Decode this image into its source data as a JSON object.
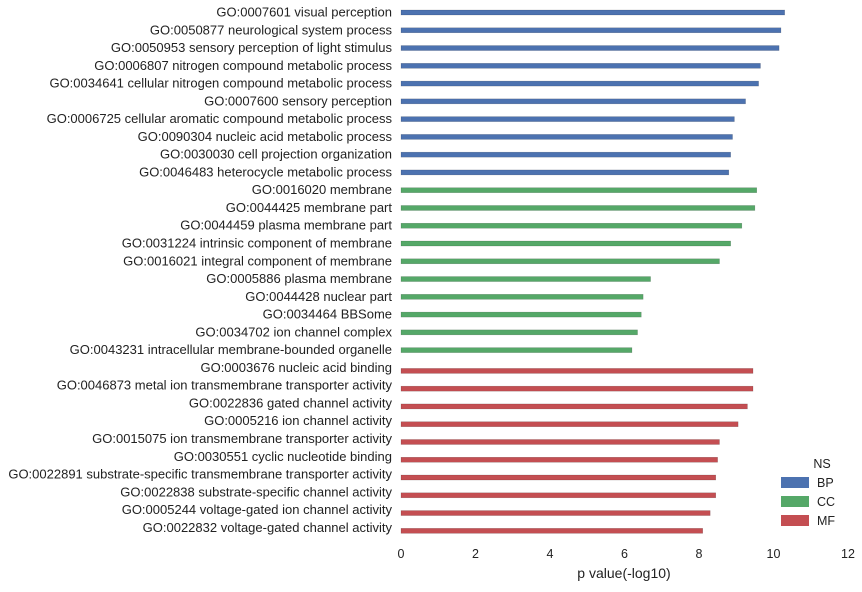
{
  "chart_data": {
    "type": "bar",
    "orientation": "horizontal",
    "title": "",
    "xlabel": "p value(-log10)",
    "ylabel": "",
    "xlim": [
      0,
      12
    ],
    "xticks": [
      "0",
      "2",
      "4",
      "6",
      "8",
      "10",
      "12"
    ],
    "grid": false,
    "legend": {
      "title": "NS",
      "placement": "bottom-right",
      "entries": [
        {
          "name": "BP",
          "color": "#4c72b0"
        },
        {
          "name": "CC",
          "color": "#55a868"
        },
        {
          "name": "MF",
          "color": "#c44e52"
        }
      ]
    },
    "categories": [
      "GO:0007601 visual perception",
      "GO:0050877 neurological system process",
      "GO:0050953 sensory perception of light stimulus",
      "GO:0006807 nitrogen compound metabolic process",
      "GO:0034641 cellular nitrogen compound metabolic process",
      "GO:0007600 sensory perception",
      "GO:0006725 cellular aromatic compound metabolic process",
      "GO:0090304 nucleic acid metabolic process",
      "GO:0030030 cell projection organization",
      "GO:0046483 heterocycle metabolic process",
      "GO:0016020 membrane",
      "GO:0044425 membrane part",
      "GO:0044459 plasma membrane part",
      "GO:0031224 intrinsic component of membrane",
      "GO:0016021 integral component of membrane",
      "GO:0005886 plasma membrane",
      "GO:0044428 nuclear part",
      "GO:0034464 BBSome",
      "GO:0034702 ion channel complex",
      "GO:0043231 intracellular membrane-bounded organelle",
      "GO:0003676 nucleic acid binding",
      "GO:0046873 metal ion transmembrane transporter activity",
      "GO:0022836 gated channel activity",
      "GO:0005216 ion channel activity",
      "GO:0015075 ion transmembrane transporter activity",
      "GO:0030551 cyclic nucleotide binding",
      "GO:0022891 substrate-specific transmembrane transporter activity",
      "GO:0022838 substrate-specific channel activity",
      "GO:0005244 voltage-gated ion channel activity",
      "GO:0022832 voltage-gated channel activity"
    ],
    "values": [
      10.3,
      10.2,
      10.15,
      9.65,
      9.6,
      9.25,
      8.95,
      8.9,
      8.85,
      8.8,
      9.55,
      9.5,
      9.15,
      8.85,
      8.55,
      6.7,
      6.5,
      6.45,
      6.35,
      6.2,
      9.45,
      9.45,
      9.3,
      9.05,
      8.55,
      8.5,
      8.45,
      8.45,
      8.3,
      8.1
    ],
    "groups": [
      "BP",
      "BP",
      "BP",
      "BP",
      "BP",
      "BP",
      "BP",
      "BP",
      "BP",
      "BP",
      "CC",
      "CC",
      "CC",
      "CC",
      "CC",
      "CC",
      "CC",
      "CC",
      "CC",
      "CC",
      "MF",
      "MF",
      "MF",
      "MF",
      "MF",
      "MF",
      "MF",
      "MF",
      "MF",
      "MF"
    ]
  }
}
